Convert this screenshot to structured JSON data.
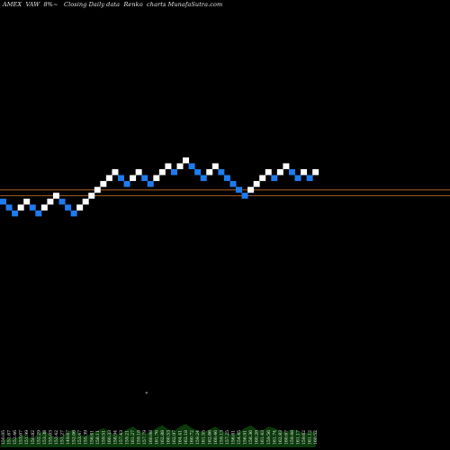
{
  "title": "AMEX  VAW  8%~   Closing Daily data  Renko  charts MunafaSutra.com",
  "chart_data": {
    "type": "renko",
    "colors": {
      "up": "#ffffff",
      "down": "#1e7cf0",
      "line": "#c8752a",
      "volume": "#0b3a0b",
      "background": "#000000"
    },
    "reference_lines": [
      155.4,
      153.8
    ],
    "bricks": [
      {
        "dir": "down",
        "value": 153.0
      },
      {
        "dir": "down",
        "value": 151.4
      },
      {
        "dir": "down",
        "value": 149.8
      },
      {
        "dir": "up",
        "value": 151.4
      },
      {
        "dir": "up",
        "value": 153.0
      },
      {
        "dir": "down",
        "value": 151.4
      },
      {
        "dir": "down",
        "value": 149.8
      },
      {
        "dir": "up",
        "value": 151.4
      },
      {
        "dir": "up",
        "value": 153.0
      },
      {
        "dir": "up",
        "value": 154.6
      },
      {
        "dir": "down",
        "value": 153.0
      },
      {
        "dir": "down",
        "value": 151.4
      },
      {
        "dir": "down",
        "value": 149.8
      },
      {
        "dir": "up",
        "value": 151.4
      },
      {
        "dir": "up",
        "value": 153.0
      },
      {
        "dir": "up",
        "value": 154.6
      },
      {
        "dir": "up",
        "value": 156.2
      },
      {
        "dir": "up",
        "value": 157.8
      },
      {
        "dir": "up",
        "value": 159.4
      },
      {
        "dir": "up",
        "value": 161.0
      },
      {
        "dir": "down",
        "value": 159.4
      },
      {
        "dir": "down",
        "value": 157.8
      },
      {
        "dir": "up",
        "value": 159.4
      },
      {
        "dir": "up",
        "value": 161.0
      },
      {
        "dir": "down",
        "value": 159.4
      },
      {
        "dir": "down",
        "value": 157.8
      },
      {
        "dir": "up",
        "value": 159.4
      },
      {
        "dir": "up",
        "value": 161.0
      },
      {
        "dir": "up",
        "value": 162.6
      },
      {
        "dir": "down",
        "value": 161.0
      },
      {
        "dir": "up",
        "value": 162.6
      },
      {
        "dir": "up",
        "value": 164.2
      },
      {
        "dir": "down",
        "value": 162.6
      },
      {
        "dir": "down",
        "value": 161.0
      },
      {
        "dir": "down",
        "value": 159.4
      },
      {
        "dir": "up",
        "value": 161.0
      },
      {
        "dir": "up",
        "value": 162.6
      },
      {
        "dir": "down",
        "value": 161.0
      },
      {
        "dir": "down",
        "value": 159.4
      },
      {
        "dir": "down",
        "value": 157.8
      },
      {
        "dir": "down",
        "value": 156.2
      },
      {
        "dir": "down",
        "value": 154.6
      },
      {
        "dir": "up",
        "value": 156.2
      },
      {
        "dir": "up",
        "value": 157.8
      },
      {
        "dir": "up",
        "value": 159.4
      },
      {
        "dir": "up",
        "value": 161.0
      },
      {
        "dir": "down",
        "value": 159.4
      },
      {
        "dir": "up",
        "value": 161.0
      },
      {
        "dir": "up",
        "value": 162.6
      },
      {
        "dir": "down",
        "value": 161.0
      },
      {
        "dir": "down",
        "value": 159.4
      },
      {
        "dir": "up",
        "value": 161.0
      },
      {
        "dir": "down",
        "value": 159.4
      },
      {
        "dir": "up",
        "value": 161.0
      }
    ],
    "x_tick_labels": [
      "150.05",
      "151.67",
      "152.46",
      "153.07",
      "151.99",
      "150.82",
      "152.29",
      "153.38",
      "155.03",
      "153.42",
      "151.27",
      "149.67",
      "152.06",
      "153.47",
      "155.39",
      "156.61",
      "158.11",
      "159.51",
      "160.33",
      "158.94",
      "157.43",
      "159.21",
      "161.27",
      "159.18",
      "157.79",
      "160.08",
      "161.76",
      "162.88",
      "160.53",
      "162.97",
      "164.41",
      "162.18",
      "160.72",
      "159.24",
      "161.55",
      "162.66",
      "160.46",
      "159.13",
      "157.25",
      "156.61",
      "154.45",
      "156.91",
      "158.36",
      "160.28",
      "161.43",
      "159.56",
      "161.74",
      "162.83",
      "160.67",
      "159.48",
      "161.17",
      "159.62",
      "161.12",
      "160.52"
    ],
    "volume": [
      5,
      7,
      6,
      9,
      8,
      6,
      10,
      12,
      9,
      7,
      8,
      11,
      13,
      9,
      8,
      10,
      12,
      14,
      11,
      9,
      10,
      13,
      15,
      12,
      10,
      11,
      14,
      16,
      13,
      12,
      15,
      17,
      14,
      12,
      11,
      13,
      15,
      12,
      10,
      9,
      11,
      14,
      16,
      13,
      12,
      15,
      14,
      12,
      11,
      13,
      12,
      10,
      11,
      12
    ],
    "volume_marker": "+"
  }
}
